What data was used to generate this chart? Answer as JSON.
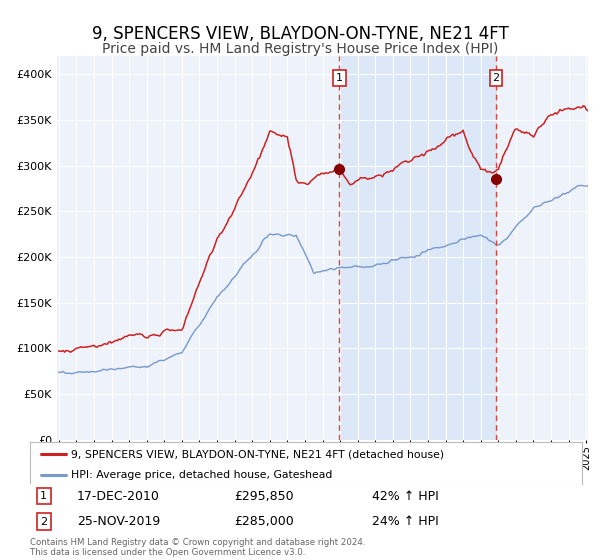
{
  "title": "9, SPENCERS VIEW, BLAYDON-ON-TYNE, NE21 4FT",
  "subtitle": "Price paid vs. HM Land Registry's House Price Index (HPI)",
  "title_fontsize": 12,
  "subtitle_fontsize": 10,
  "background_color": "#ffffff",
  "plot_bg_color": "#eef2fa",
  "ylim": [
    0,
    420000
  ],
  "yticks": [
    0,
    50000,
    100000,
    150000,
    200000,
    250000,
    300000,
    350000,
    400000
  ],
  "ytick_labels": [
    "£0",
    "£50K",
    "£100K",
    "£150K",
    "£200K",
    "£250K",
    "£300K",
    "£350K",
    "£400K"
  ],
  "red_line_color": "#cc2222",
  "blue_line_color": "#7799cc",
  "vline_color": "#dd4444",
  "highlight_color": "#dce8f8",
  "dot_color": "#880000",
  "purchase1_price": 295850,
  "purchase1_hpi": "42%",
  "purchase1_date": "17-DEC-2010",
  "purchase2_price": 285000,
  "purchase2_hpi": "24%",
  "purchase2_date": "25-NOV-2019",
  "legend_label_red": "9, SPENCERS VIEW, BLAYDON-ON-TYNE, NE21 4FT (detached house)",
  "legend_label_blue": "HPI: Average price, detached house, Gateshead",
  "footer": "Contains HM Land Registry data © Crown copyright and database right 2024.\nThis data is licensed under the Open Government Licence v3.0.",
  "x_start_year": 1995,
  "x_end_year": 2025
}
